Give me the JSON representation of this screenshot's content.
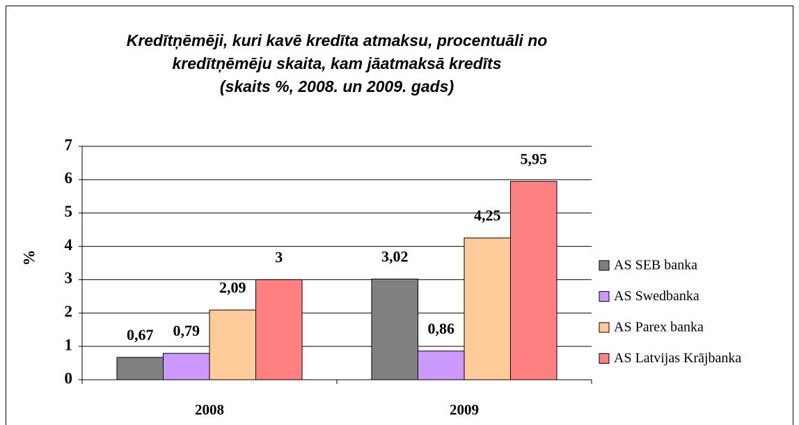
{
  "chart_data": {
    "type": "bar",
    "title": [
      "Kredītņēmēji, kuri kavē kredīta atmaksu, procentuāli no",
      "kredītņēmēju skaita, kam jāatmaksā kredīts",
      "(skaits %, 2008. un 2009. gads)"
    ],
    "y_label": "%",
    "categories": [
      "2008",
      "2009"
    ],
    "series": [
      {
        "name": "AS SEB banka",
        "color": "#808080",
        "values": [
          0.67,
          3.02
        ],
        "value_labels": [
          "0,67",
          "3,02"
        ]
      },
      {
        "name": "AS Swedbanka",
        "color": "#cc99ff",
        "values": [
          0.79,
          0.86
        ],
        "value_labels": [
          "0,79",
          "0,86"
        ]
      },
      {
        "name": "AS Parex banka",
        "color": "#ffcc99",
        "values": [
          2.09,
          4.25
        ],
        "value_labels": [
          "2,09",
          "4,25"
        ]
      },
      {
        "name": "AS Latvijas Krājbanka",
        "color": "#ff8080",
        "values": [
          3,
          5.95
        ],
        "value_labels": [
          "3",
          "5,95"
        ]
      }
    ],
    "ylim": [
      0,
      7
    ],
    "yticks": [
      0,
      1,
      2,
      3,
      4,
      5,
      6,
      7
    ],
    "grid": true,
    "legend": "right"
  }
}
